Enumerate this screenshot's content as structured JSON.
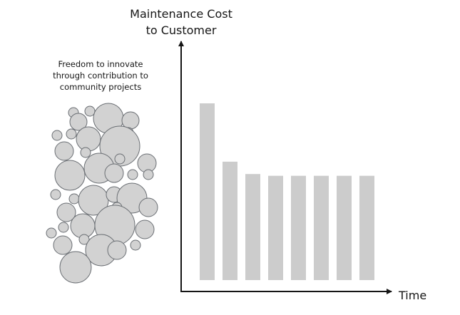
{
  "annotation": {
    "lines": [
      "Freedom to innovate",
      "through contribution to",
      "community projects"
    ]
  },
  "chart_data": {
    "type": "bar",
    "ylabel_lines": [
      "Maintenance Cost",
      "to Customer"
    ],
    "xlabel": "Time",
    "categories": [
      "",
      "",
      "",
      "",
      "",
      "",
      "",
      ""
    ],
    "values": [
      100,
      67,
      60,
      59,
      59,
      59,
      59,
      59
    ],
    "ylim": [
      0,
      100
    ],
    "y_axis_unit": "relative",
    "grid": false,
    "legend": "none",
    "bar_color": "#cccccc",
    "axis_color": "#151515"
  },
  "bubbles": {
    "fill": "#d2d2d2",
    "stroke": "#6a6e73"
  }
}
